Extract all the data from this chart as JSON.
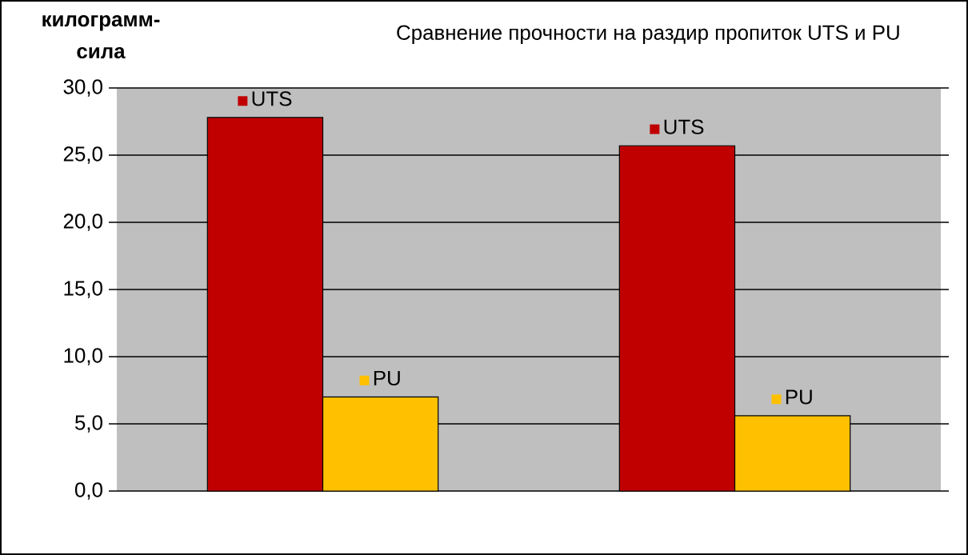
{
  "chart_data": {
    "type": "bar",
    "title": "Сравнение прочности на раздир пропиток UTS и PU",
    "ylabel": "килограмм-сила",
    "categories": [
      null,
      null
    ],
    "series": [
      {
        "name": "UTS",
        "color": "#c00000",
        "values": [
          27.8,
          25.7
        ]
      },
      {
        "name": "PU",
        "color": "#ffc000",
        "values": [
          7.0,
          5.6
        ]
      }
    ],
    "ylim": [
      0,
      30
    ],
    "yticks": [
      {
        "value": 0,
        "label": "0,0"
      },
      {
        "value": 5,
        "label": "5,0"
      },
      {
        "value": 10,
        "label": "10,0"
      },
      {
        "value": 15,
        "label": "15,0"
      },
      {
        "value": 20,
        "label": "20,0"
      },
      {
        "value": 25,
        "label": "25,0"
      },
      {
        "value": 30,
        "label": "30,0"
      }
    ],
    "grid": "y",
    "tick_labels": "y",
    "legend": "top"
  }
}
